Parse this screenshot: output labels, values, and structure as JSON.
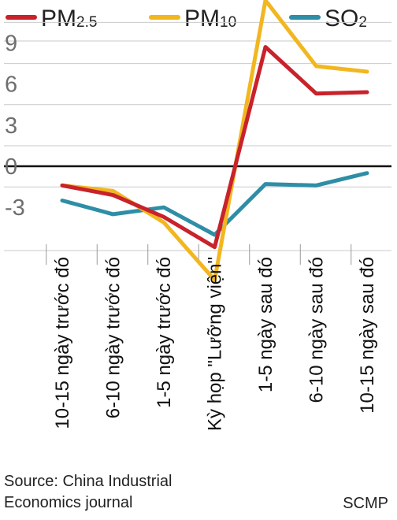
{
  "chart_data": {
    "type": "line",
    "categories": [
      "10-15 ngày trước đó",
      "6-10 ngày trước đó",
      "1-5 ngày trước đó",
      "Kỳ họp \"Lưỡng viện\"",
      "1-5 ngày sau đó",
      "6-10 ngày sau đó",
      "10-15 ngày sau đó"
    ],
    "series": [
      {
        "name": "PM2.5",
        "name_main": "PM",
        "name_sub": "2.5",
        "color": "#c8222b",
        "values": [
          -1.4,
          -2.1,
          -3.7,
          -5.9,
          8.7,
          5.3,
          5.4
        ]
      },
      {
        "name": "PM10",
        "name_main": "PM",
        "name_sub": "10",
        "color": "#f2b61f",
        "values": [
          -1.4,
          -1.8,
          -4.1,
          -8.3,
          12.1,
          7.3,
          6.9
        ]
      },
      {
        "name": "SO2",
        "name_main": "SO",
        "name_sub": "2",
        "color": "#2e8ea6",
        "values": [
          -2.5,
          -3.5,
          -3.0,
          -5.0,
          -1.3,
          -1.4,
          -0.5
        ]
      }
    ],
    "yticks": [
      9,
      6,
      3,
      0,
      -3
    ],
    "ytick_labels": [
      "9",
      "6",
      "3",
      "0",
      "-3"
    ],
    "ylim": [
      -9.1,
      12.1
    ],
    "zero_line_color": "#111111",
    "grid": "horizontal",
    "legend_position": "top",
    "title": "",
    "xlabel": "",
    "ylabel": ""
  },
  "footer": {
    "source": "Source: China Industrial Economics journal",
    "credit": "SCMP"
  }
}
